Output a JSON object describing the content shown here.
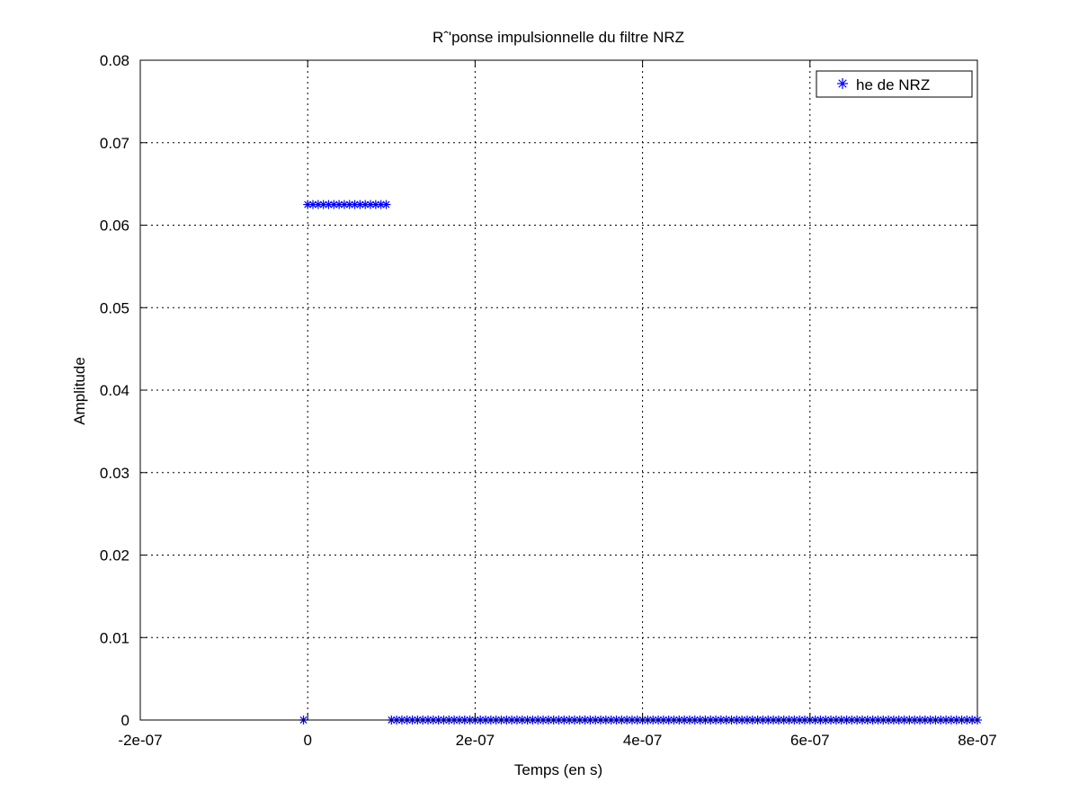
{
  "chart_data": {
    "type": "scatter",
    "title": "Rˆ'ponse impulsionnelle du filtre NRZ",
    "xlabel": "Temps (en s)",
    "ylabel": "Amplitude",
    "xlim": [
      -2e-07,
      8e-07
    ],
    "ylim": [
      0,
      0.08
    ],
    "xticks": [
      -2e-07,
      0,
      2e-07,
      4e-07,
      6e-07,
      8e-07
    ],
    "xtick_labels": [
      "-2e-07",
      "0",
      "2e-07",
      "4e-07",
      "6e-07",
      "8e-07"
    ],
    "yticks": [
      0,
      0.01,
      0.02,
      0.03,
      0.04,
      0.05,
      0.06,
      0.07,
      0.08
    ],
    "ytick_labels": [
      "0",
      "0.01",
      "0.02",
      "0.03",
      "0.04",
      "0.05",
      "0.06",
      "0.07",
      "0.08"
    ],
    "grid": true,
    "legend_position": "top-right",
    "series": [
      {
        "name": "he de NRZ",
        "color": "#0000ff",
        "marker": "asterisk",
        "segments": [
          {
            "x_start": -5e-09,
            "x_end": -5e-09,
            "step": 6.25e-09,
            "y": 0
          },
          {
            "x_start": 0,
            "x_end": 9.375e-08,
            "step": 6.25e-09,
            "y": 0.0625
          },
          {
            "x_start": 1e-07,
            "x_end": 8e-07,
            "step": 6.25e-09,
            "y": 0
          }
        ]
      }
    ]
  }
}
